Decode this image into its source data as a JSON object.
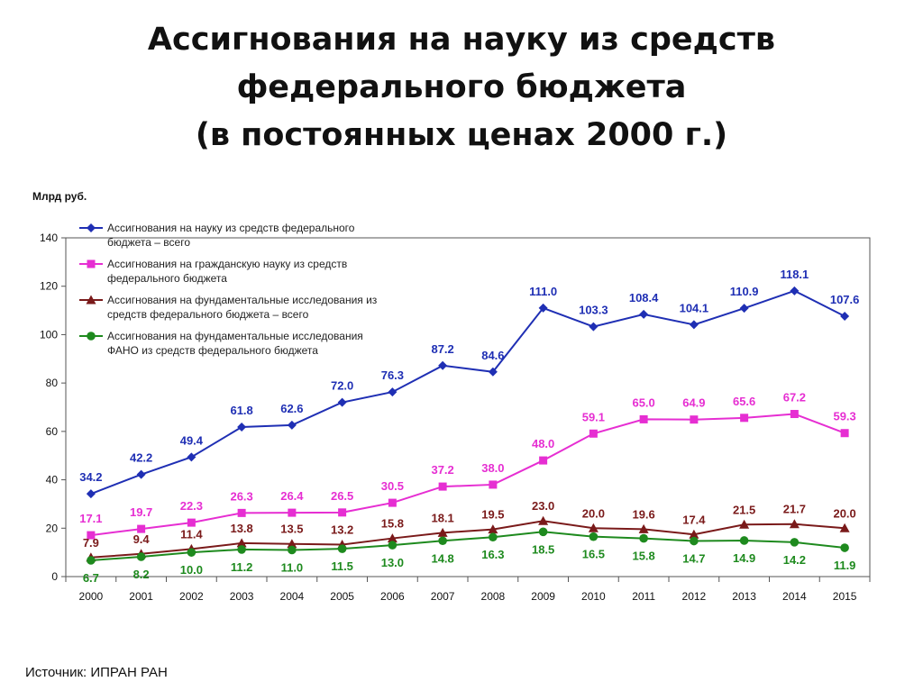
{
  "title_lines": [
    "Ассигнования на науку из средств",
    "федерального бюджета",
    "(в постоянных ценах 2000 г.)"
  ],
  "source": "Источник: ИПРАН РАН",
  "chart_data": {
    "type": "line",
    "ylabel": "Млрд руб.",
    "xlabel": "",
    "ylim": [
      0,
      140
    ],
    "yticks": [
      0,
      20,
      40,
      60,
      80,
      100,
      120,
      140
    ],
    "grid": false,
    "legend_position": "top-left",
    "categories": [
      "2000",
      "2001",
      "2002",
      "2003",
      "2004",
      "2005",
      "2006",
      "2007",
      "2008",
      "2009",
      "2010",
      "2011",
      "2012",
      "2013",
      "2014",
      "2015"
    ],
    "series": [
      {
        "name": "Ассигнования на науку из средств федерального бюджета – всего",
        "legend_lines": [
          "Ассигнования на науку из средств федерального",
          "бюджета – всего"
        ],
        "color": "#1f2fb4",
        "marker": "diamond",
        "values": [
          34.2,
          42.2,
          49.4,
          61.8,
          62.6,
          72.0,
          76.3,
          87.2,
          84.6,
          111.0,
          103.3,
          108.4,
          104.1,
          110.9,
          118.1,
          107.6
        ],
        "labels": [
          "34.2",
          "42.2",
          "49.4",
          "61.8",
          "62.6",
          "72.0",
          "76.3",
          "87.2",
          "84.6",
          "111.0",
          "103.3",
          "108.4",
          "104.1",
          "110.9",
          "118.1",
          "107.6"
        ]
      },
      {
        "name": "Ассигнования на гражданскую науку из средств федерального бюджета",
        "legend_lines": [
          "Ассигнования на гражданскую науку из средств",
          "федерального бюджета"
        ],
        "color": "#e62ed2",
        "marker": "square",
        "values": [
          17.1,
          19.7,
          22.3,
          26.3,
          26.4,
          26.5,
          30.5,
          37.2,
          38.0,
          48.0,
          59.1,
          65.0,
          64.9,
          65.6,
          67.2,
          59.3
        ],
        "labels": [
          "17.1",
          "19.7",
          "22.3",
          "26.3",
          "26.4",
          "26.5",
          "30.5",
          "37.2",
          "38.0",
          "48.0",
          "59.1",
          "65.0",
          "64.9",
          "65.6",
          "67.2",
          "59.3"
        ]
      },
      {
        "name": "Ассигнования на фундаментальные исследования из средств федерального бюджета – всего",
        "legend_lines": [
          "Ассигнования на фундаментальные исследования из",
          "средств федерального бюджета – всего"
        ],
        "color": "#7a1a1a",
        "marker": "triangle",
        "values": [
          7.9,
          9.4,
          11.4,
          13.8,
          13.5,
          13.2,
          15.8,
          18.1,
          19.5,
          23.0,
          20.0,
          19.6,
          17.4,
          21.5,
          21.7,
          20.0
        ],
        "labels": [
          "7.9",
          "9.4",
          "11.4",
          "13.8",
          "13.5",
          "13.2",
          "15.8",
          "18.1",
          "19.5",
          "23.0",
          "20.0",
          "19.6",
          "17.4",
          "21.5",
          "21.7",
          "20.0"
        ]
      },
      {
        "name": "Ассигнования на фундаментальные исследования ФАНО из средств федерального бюджета",
        "legend_lines": [
          "Ассигнования на фундаментальные исследования",
          "ФАНО из средств федерального бюджета"
        ],
        "color": "#1e8a1e",
        "marker": "circle",
        "values": [
          6.7,
          8.2,
          10.0,
          11.2,
          11.0,
          11.5,
          13.0,
          14.8,
          16.3,
          18.5,
          16.5,
          15.8,
          14.7,
          14.9,
          14.2,
          11.9
        ],
        "labels": [
          "6.7",
          "8.2",
          "10.0",
          "11.2",
          "11.0",
          "11.5",
          "13.0",
          "14.8",
          "16.3",
          "18.5",
          "16.5",
          "15.8",
          "14.7",
          "14.9",
          "14.2",
          "11.9"
        ]
      }
    ]
  }
}
